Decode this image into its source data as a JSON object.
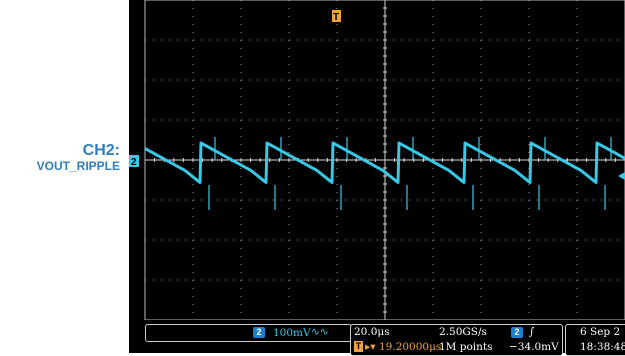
{
  "annotation": {
    "line1": "CH2:",
    "line2": "VOUT_RIPPLE"
  },
  "scope": {
    "trigger_marker": "T",
    "channel_marker": "2",
    "channel_box": {
      "channel": "2",
      "scale": "100mV",
      "coupling_icon": "bandwidth-limit-icon"
    },
    "horizontal": {
      "time_per_div": "20.0μs",
      "trigger_position": "19.20000μs"
    },
    "acquisition": {
      "sample_rate": "2.50GS/s",
      "record_length": "1M points"
    },
    "trigger": {
      "source": "2",
      "slope_icon": "rising-edge-icon",
      "level": "−34.0mV"
    },
    "datetime": {
      "date": "6 Sep 2",
      "time": "18:38:48"
    }
  },
  "colors": {
    "background": "#000000",
    "grid": "#9a9a9a",
    "trace": "#39c8e6",
    "trigger": "#f2a23c",
    "label": "#2f7fc0"
  }
}
